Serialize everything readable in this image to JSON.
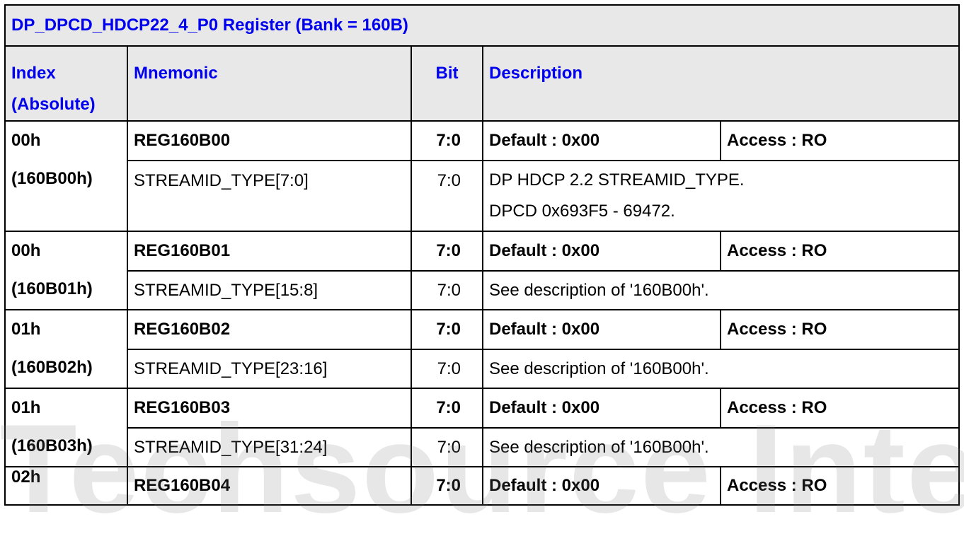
{
  "title": "DP_DPCD_HDCP22_4_P0 Register (Bank = 160B)",
  "headers": {
    "index": "Index",
    "index_sub": "(Absolute)",
    "mnemonic": "Mnemonic",
    "bit": "Bit",
    "description": "Description"
  },
  "registers": [
    {
      "index": "00h",
      "absolute": "(160B00h)",
      "name": "REG160B00",
      "bits": "7:0",
      "default": "Default : 0x00",
      "access": "Access : RO",
      "field": "STREAMID_TYPE[7:0]",
      "field_bits": "7:0",
      "desc": [
        "DP HDCP 2.2 STREAMID_TYPE.",
        "DPCD 0x693F5 - 69472."
      ]
    },
    {
      "index": "00h",
      "absolute": "(160B01h)",
      "name": "REG160B01",
      "bits": "7:0",
      "default": "Default : 0x00",
      "access": "Access : RO",
      "field": "STREAMID_TYPE[15:8]",
      "field_bits": "7:0",
      "desc": [
        "See description of '160B00h'."
      ]
    },
    {
      "index": "01h",
      "absolute": "(160B02h)",
      "name": "REG160B02",
      "bits": "7:0",
      "default": "Default : 0x00",
      "access": "Access : RO",
      "field": "STREAMID_TYPE[23:16]",
      "field_bits": "7:0",
      "desc": [
        "See description of '160B00h'."
      ]
    },
    {
      "index": "01h",
      "absolute": "(160B03h)",
      "name": "REG160B03",
      "bits": "7:0",
      "default": "Default : 0x00",
      "access": "Access : RO",
      "field": "STREAMID_TYPE[31:24]",
      "field_bits": "7:0",
      "desc": [
        "See description of '160B00h'."
      ]
    },
    {
      "index": "02h",
      "name": "REG160B04",
      "bits": "7:0",
      "default": "Default : 0x00",
      "access": "Access : RO"
    }
  ],
  "watermark": "Techsource Internal Use"
}
